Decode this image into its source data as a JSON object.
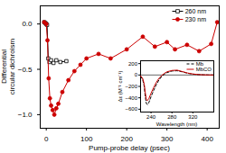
{
  "chart_data": [
    {
      "type": "line",
      "xlabel": "Pump-probe delay (psec)",
      "ylabel": "Differential\ncircular dichroism",
      "xlim": [
        -15,
        430
      ],
      "ylim": [
        -1.15,
        0.2
      ],
      "xticks": [
        0,
        100,
        200,
        300,
        400
      ],
      "yticks": [
        {
          "value": 0.0,
          "label": "0.0"
        },
        {
          "value": -0.5,
          "label": "−0.5"
        },
        {
          "value": -1.0,
          "label": "−1.0"
        }
      ],
      "legend": "upper right",
      "series": [
        {
          "name": "260 nm",
          "color": "#000000",
          "marker": "open-square",
          "line_style": "solid",
          "x": [
            -5,
            -2,
            0,
            2,
            5,
            8,
            12,
            18,
            25,
            35,
            50
          ],
          "values": [
            0.02,
            0.01,
            0.0,
            -0.01,
            -0.38,
            -0.42,
            -0.4,
            -0.43,
            -0.4,
            -0.42,
            -0.41
          ]
        },
        {
          "name": "230 nm",
          "color": "#cc0000",
          "marker": "circle",
          "line_style": "solid",
          "x": [
            -5,
            0,
            3,
            6,
            9,
            12,
            16,
            20,
            25,
            30,
            40,
            55,
            70,
            85,
            100,
            130,
            160,
            200,
            240,
            270,
            300,
            320,
            350,
            380,
            410,
            425
          ],
          "values": [
            0.02,
            0.0,
            -0.18,
            -0.6,
            -0.82,
            -0.9,
            -0.95,
            -1.0,
            -0.93,
            -0.88,
            -0.75,
            -0.62,
            -0.52,
            -0.45,
            -0.38,
            -0.33,
            -0.38,
            -0.28,
            -0.14,
            -0.25,
            -0.2,
            -0.28,
            -0.23,
            -0.3,
            -0.22,
            0.02
          ]
        }
      ]
    },
    {
      "type": "line",
      "xlabel": "Wavelength (nm)",
      "ylabel": "Δε (M⁻¹ cm⁻¹)",
      "xlim": [
        220,
        360
      ],
      "ylim": [
        -650,
        250
      ],
      "xticks": [
        240,
        280,
        320
      ],
      "yticks": [
        200,
        0,
        -200,
        -400,
        -600
      ],
      "legend": "upper right",
      "hlines": [
        0
      ],
      "series": [
        {
          "name": "Mb",
          "color": "#000000",
          "line_style": "dashed",
          "x": [
            220,
            224,
            227,
            229,
            231,
            233,
            236,
            240,
            245,
            250,
            255,
            260,
            265,
            270,
            280,
            290,
            300,
            310,
            320,
            330,
            340,
            350,
            360
          ],
          "values": [
            -20,
            -80,
            -200,
            -380,
            -500,
            -520,
            -480,
            -380,
            -270,
            -170,
            -90,
            -30,
            10,
            40,
            70,
            75,
            55,
            30,
            15,
            7,
            3,
            1,
            0
          ]
        },
        {
          "name": "MbCO",
          "color": "#cc0000",
          "line_style": "solid",
          "x": [
            220,
            224,
            227,
            229,
            231,
            233,
            236,
            240,
            245,
            250,
            255,
            260,
            265,
            270,
            280,
            290,
            300,
            310,
            320,
            330,
            340,
            350,
            360
          ],
          "values": [
            -15,
            -60,
            -160,
            -310,
            -430,
            -450,
            -410,
            -320,
            -220,
            -130,
            -60,
            -10,
            25,
            55,
            80,
            85,
            60,
            35,
            18,
            8,
            3,
            1,
            0
          ]
        }
      ]
    }
  ]
}
